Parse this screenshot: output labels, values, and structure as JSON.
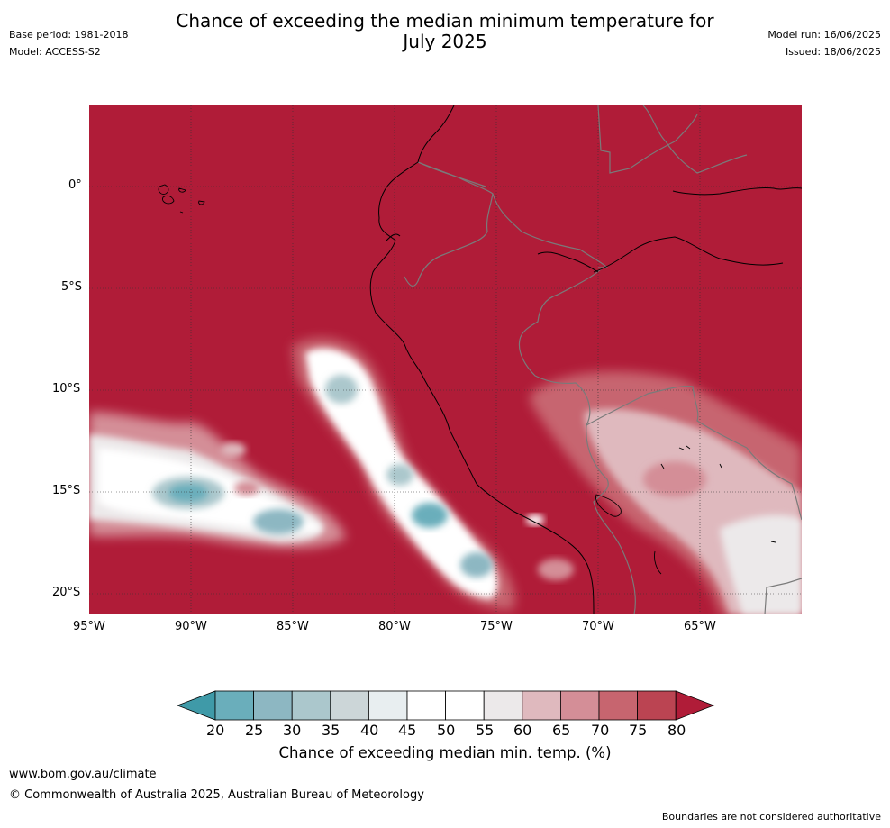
{
  "header": {
    "title_line1": "Chance of exceeding the median minimum temperature for",
    "title_line2": "July 2025",
    "base_period": "Base period: 1981-2018",
    "model": "Model: ACCESS-S2",
    "model_run": "Model run: 16/06/2025",
    "issued": "Issued: 18/06/2025"
  },
  "map": {
    "lat_labels": [
      "0°",
      "5°S",
      "10°S",
      "15°S",
      "20°S"
    ],
    "lon_labels": [
      "95°W",
      "90°W",
      "85°W",
      "80°W",
      "75°W",
      "70°W",
      "65°W"
    ],
    "colors": {
      "ocean_land_high": "#b01c38",
      "coast": "#000000",
      "borders": "#808080"
    }
  },
  "colorbar": {
    "ticks": [
      "20",
      "25",
      "30",
      "35",
      "40",
      "45",
      "50",
      "55",
      "60",
      "65",
      "70",
      "75",
      "80"
    ],
    "colors": [
      "#3f9aa8",
      "#6aaebb",
      "#8db7c2",
      "#abc7cc",
      "#ccd6d8",
      "#e8eef0",
      "#ffffff",
      "#ffffff",
      "#ece9ea",
      "#dfb9be",
      "#d48e97",
      "#c7656f",
      "#bb4452",
      "#b01c38"
    ],
    "label": "Chance of exceeding median min. temp. (%)"
  },
  "footer": {
    "website": "www.bom.gov.au/climate",
    "copyright": "© Commonwealth of Australia 2025, Australian Bureau of Meteorology",
    "disclaimer": "Boundaries are not considered authoritative"
  }
}
